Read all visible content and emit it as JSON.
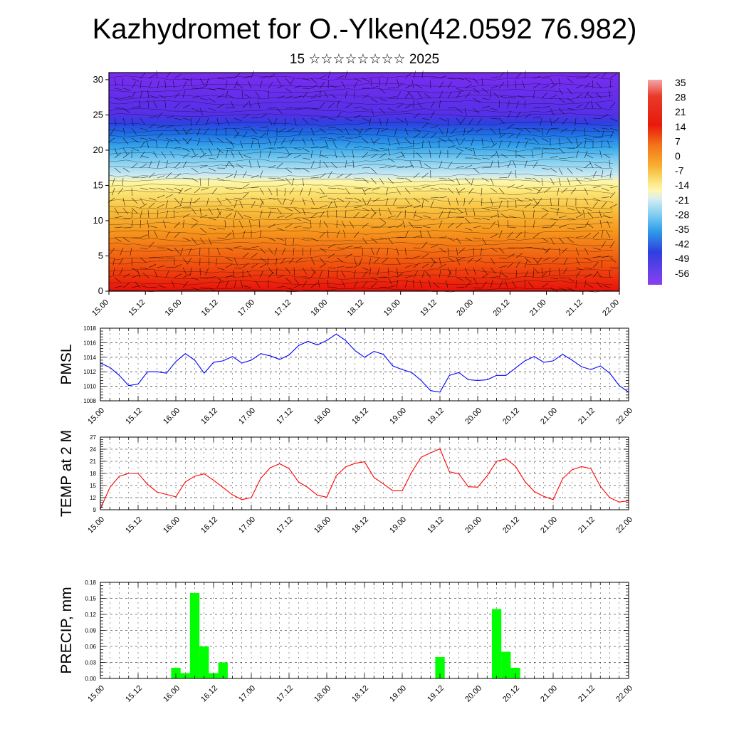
{
  "header": {
    "title": "Kazhydromet for O.-Ylken(42.0592 76.982)",
    "subtitle": "15 ☆☆☆☆☆☆☆☆ 2025"
  },
  "chart_data": [
    {
      "type": "heatmap",
      "description_title": "",
      "x_tick_labels": [
        "15.00",
        "15.12",
        "16.00",
        "16.12",
        "17.00",
        "17.12",
        "18.00",
        "18.12",
        "19.00",
        "19.12",
        "20.00",
        "20.12",
        "21.00",
        "21.12",
        "22.00"
      ],
      "y_tick_labels": [
        "0",
        "5",
        "10",
        "15",
        "20",
        "25",
        "30"
      ],
      "ylim": [
        0,
        31
      ],
      "colorbar_labels": [
        "35",
        "28",
        "21",
        "14",
        "7",
        "0",
        "-7",
        "-14",
        "-21",
        "-28",
        "-35",
        "-42",
        "-49",
        "-56"
      ],
      "colors": {
        "warm": "#e8100c",
        "mid": "#fff6a8",
        "cold": "#7a2cf0",
        "wind": "#000000"
      },
      "contour_lines": "black",
      "wind_barbs": true
    },
    {
      "type": "line",
      "ylabel": "PMSL",
      "x_tick_labels": [
        "15.00",
        "15.12",
        "16.00",
        "16.12",
        "17.00",
        "17.12",
        "18.00",
        "18.12",
        "19.00",
        "19.12",
        "20.00",
        "20.12",
        "21.00",
        "21.12",
        "22.00"
      ],
      "y_tick_labels": [
        "1008",
        "1010",
        "1012",
        "1014",
        "1016",
        "1018"
      ],
      "ylim": [
        1008,
        1018
      ],
      "grid": true,
      "color": "#0000ff",
      "series": [
        {
          "values": [
            1013.2,
            1012.6,
            1011.5,
            1010.1,
            1010.3,
            1012.0,
            1012.0,
            1011.8,
            1013.4,
            1014.5,
            1013.6,
            1011.8,
            1013.3,
            1013.5,
            1014.1,
            1013.2,
            1013.6,
            1014.5,
            1014.2,
            1013.7,
            1014.3,
            1015.6,
            1016.2,
            1015.7,
            1016.3,
            1017.2,
            1016.3,
            1014.9,
            1014.0,
            1014.8,
            1014.4,
            1012.8,
            1012.3,
            1011.9,
            1010.8,
            1009.4,
            1009.2,
            1011.5,
            1011.9,
            1010.9,
            1010.8,
            1010.9,
            1011.5,
            1011.5,
            1012.5,
            1013.5,
            1014.1,
            1013.3,
            1013.5,
            1014.4,
            1013.6,
            1012.7,
            1012.3,
            1012.8,
            1011.8,
            1010.1,
            1009.2
          ]
        }
      ]
    },
    {
      "type": "line",
      "ylabel": "TEMP at 2 M",
      "x_tick_labels": [
        "15.00",
        "15.12",
        "16.00",
        "16.12",
        "17.00",
        "17.12",
        "18.00",
        "18.12",
        "19.00",
        "19.12",
        "20.00",
        "20.12",
        "21.00",
        "21.12",
        "22.00"
      ],
      "y_tick_labels": [
        "9",
        "12",
        "15",
        "18",
        "21",
        "24",
        "27"
      ],
      "ylim": [
        9,
        27
      ],
      "grid": true,
      "color": "#ff0000",
      "series": [
        {
          "values": [
            9.2,
            14.5,
            17.3,
            18.0,
            18.0,
            15.3,
            13.4,
            12.8,
            12.2,
            15.9,
            17.3,
            17.9,
            16.3,
            14.5,
            12.7,
            11.5,
            12.0,
            16.8,
            19.4,
            20.4,
            19.2,
            15.9,
            14.5,
            12.6,
            12.1,
            17.4,
            19.6,
            20.5,
            20.9,
            17.0,
            15.4,
            13.7,
            13.7,
            18.3,
            22.0,
            23.1,
            24.1,
            18.4,
            17.9,
            14.7,
            14.6,
            17.4,
            21.0,
            21.6,
            19.8,
            16.0,
            13.5,
            12.3,
            11.5,
            16.7,
            18.9,
            19.7,
            19.2,
            14.8,
            12.0,
            10.9,
            11.2
          ]
        }
      ]
    },
    {
      "type": "bar",
      "ylabel": "PRECIP, mm",
      "x_tick_labels": [
        "15.00",
        "15.12",
        "16.00",
        "16.12",
        "17.00",
        "17.12",
        "18.00",
        "18.12",
        "19.00",
        "19.12",
        "20.00",
        "20.12",
        "21.00",
        "21.12",
        "22.00"
      ],
      "y_tick_labels": [
        "0.00",
        "0.03",
        "0.06",
        "0.09",
        "0.12",
        "0.15",
        "0.18"
      ],
      "ylim": [
        0,
        0.18
      ],
      "grid": true,
      "color": "#00ff00",
      "bars": [
        {
          "step": 8,
          "value": 0.02
        },
        {
          "step": 9,
          "value": 0.01
        },
        {
          "step": 10,
          "value": 0.16
        },
        {
          "step": 11,
          "value": 0.06
        },
        {
          "step": 12,
          "value": 0.01
        },
        {
          "step": 13,
          "value": 0.03
        },
        {
          "step": 36,
          "value": 0.04
        },
        {
          "step": 42,
          "value": 0.13
        },
        {
          "step": 43,
          "value": 0.05
        },
        {
          "step": 44,
          "value": 0.02
        }
      ]
    }
  ]
}
